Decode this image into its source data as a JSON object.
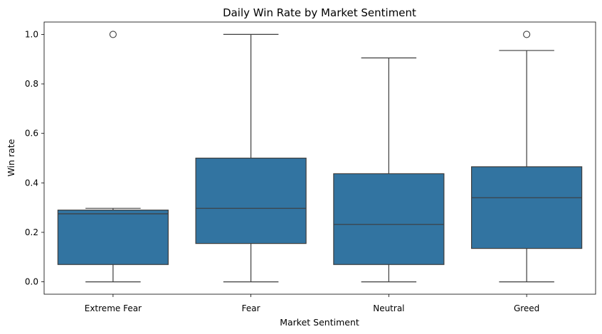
{
  "chart_data": {
    "type": "box",
    "title": "Daily Win Rate by Market Sentiment",
    "xlabel": "Market Sentiment",
    "ylabel": "Win rate",
    "ylim": [
      -0.05,
      1.05
    ],
    "yticks": [
      0.0,
      0.2,
      0.4,
      0.6,
      0.8,
      1.0
    ],
    "ytick_labels": [
      "0.0",
      "0.2",
      "0.4",
      "0.6",
      "0.8",
      "1.0"
    ],
    "box_color": "#3274a1",
    "line_color": "#3d3d3d",
    "grid": false,
    "categories": [
      "Extreme Fear",
      "Fear",
      "Neutral",
      "Greed"
    ],
    "boxes": [
      {
        "category": "Extreme Fear",
        "whisker_low": 0.0,
        "q1": 0.07,
        "median": 0.275,
        "q3": 0.29,
        "whisker_high": 0.297,
        "outliers": [
          1.0
        ]
      },
      {
        "category": "Fear",
        "whisker_low": 0.0,
        "q1": 0.155,
        "median": 0.297,
        "q3": 0.5,
        "whisker_high": 1.0,
        "outliers": []
      },
      {
        "category": "Neutral",
        "whisker_low": 0.0,
        "q1": 0.07,
        "median": 0.232,
        "q3": 0.437,
        "whisker_high": 0.905,
        "outliers": []
      },
      {
        "category": "Greed",
        "whisker_low": 0.0,
        "q1": 0.135,
        "median": 0.34,
        "q3": 0.465,
        "whisker_high": 0.935,
        "outliers": [
          1.0
        ]
      }
    ]
  }
}
